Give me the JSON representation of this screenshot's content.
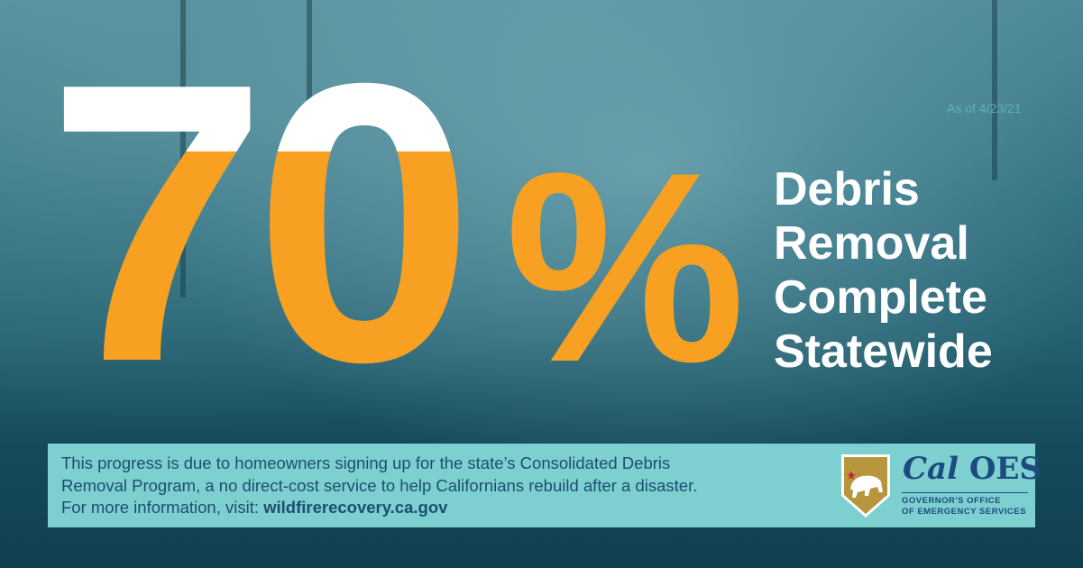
{
  "stat": {
    "number": "70",
    "percent_sign": "%",
    "progress_percent": 70
  },
  "as_of": "As of 4/23/21",
  "headline": [
    "Debris",
    "Removal",
    "Complete",
    "Statewide"
  ],
  "info": {
    "line1": "This progress is due to homeowners signing up for the state’s Consolidated Debris",
    "line2": "Removal Program, a no direct-cost service to help Californians rebuild after a disaster.",
    "line3_prefix": "For more information, visit: ",
    "link": "wildfirerecovery.ca.gov"
  },
  "logo": {
    "cal": "Cal",
    "oes": "OES",
    "line1": "GOVERNOR'S OFFICE",
    "line2": "OF EMERGENCY SERVICES"
  },
  "colors": {
    "orange": "#f7a021",
    "teal_box": "#7dcfd0",
    "navy": "#1d4b7f",
    "background": "#1d5c6a"
  }
}
